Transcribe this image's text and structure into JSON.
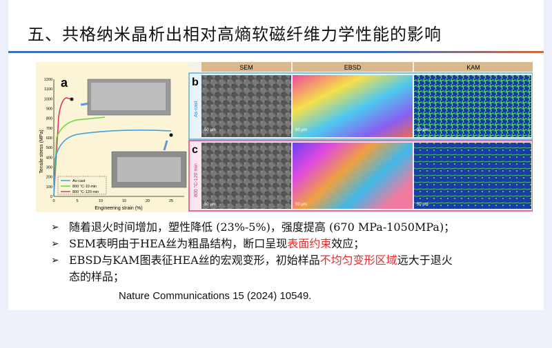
{
  "title": "五、共格纳米晶析出相对高熵软磁纤维力学性能的影响",
  "figure": {
    "panel_a": {
      "label": "a",
      "ylabel": "Tensile stress (MPa)",
      "xlabel": "Engineering strain (%)",
      "yticks": [
        "0",
        "100",
        "200",
        "300",
        "400",
        "500",
        "600",
        "700",
        "800",
        "900",
        "1000",
        "1100",
        "1200"
      ],
      "xticks": [
        "0",
        "5",
        "10",
        "15",
        "20",
        "25"
      ],
      "legend": [
        "As-cast",
        "800 °C-10 min",
        "800 °C-120 min"
      ],
      "colors": {
        "as_cast": "#3ea0e0",
        "min10": "#6ad640",
        "min120": "#e0306e"
      }
    },
    "panel_b": {
      "label": "b",
      "row_label": "As-cast"
    },
    "panel_c": {
      "label": "c",
      "row_label": "800 °C-120 min"
    },
    "columns": [
      "SEM",
      "EBSD",
      "KAM"
    ],
    "scale": "50 μm"
  },
  "bullets": [
    {
      "text": "随着退火时间增加，塑性降低 (23%-5%)，强度提高 (670 MPa-1050MPa)；"
    },
    {
      "pre": "SEM表明由于HEA丝为粗晶结构，断口呈现",
      "highlight": "表面约束",
      "post": "效应；"
    },
    {
      "pre": "EBSD与KAM图表征HEA丝的宏观变形，初始样品",
      "highlight": "不均匀变形区域",
      "post": "远大于退火",
      "line2": "态的样品；"
    }
  ],
  "reference": "Nature Communications 15 (2024) 10549."
}
